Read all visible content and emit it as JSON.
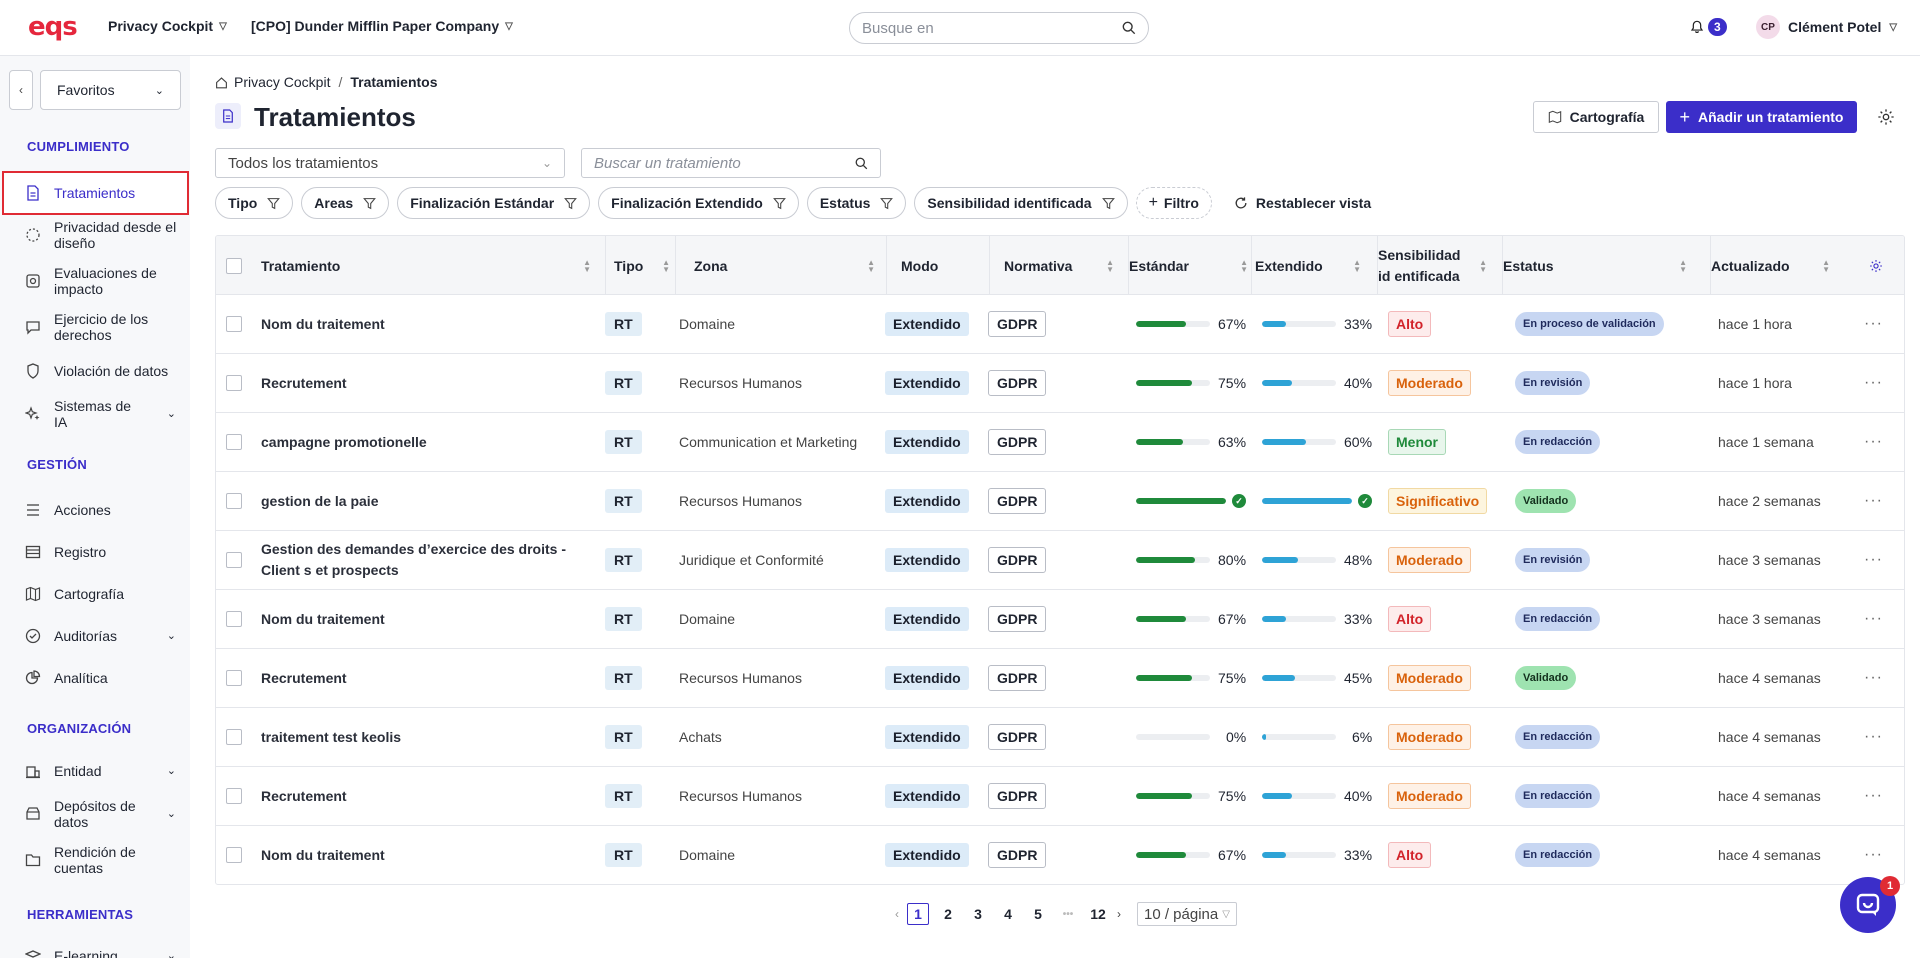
{
  "header": {
    "logo": "eqs",
    "module_menu": "Privacy Cockpit",
    "company_menu": "[CPO] Dunder Mifflin Paper Company",
    "search_placeholder": "Busque en",
    "notifications_count": "3",
    "user_initials": "CP",
    "user_name": "Clément Potel"
  },
  "sidebar": {
    "favorites_label": "Favoritos",
    "sections": {
      "cumplimiento": "CUMPLIMIENTO",
      "gestion": "GESTIÓN",
      "organizacion": "ORGANIZACIÓN",
      "herramientas": "HERRAMIENTAS"
    },
    "items": {
      "tratamientos": "Tratamientos",
      "privacidad": "Privacidad desde el diseño",
      "evaluaciones": "Evaluaciones de impacto",
      "ejercicio": "Ejercicio de los derechos",
      "violacion": "Violación de datos",
      "sistemas": "Sistemas de IA",
      "acciones": "Acciones",
      "registro": "Registro",
      "cartografia": "Cartografía",
      "auditorias": "Auditorías",
      "analitica": "Analítica",
      "entidad": "Entidad",
      "depositos": "Depósitos de datos",
      "rendicion": "Rendición de cuentas",
      "elearning": "E-learning"
    }
  },
  "main": {
    "breadcrumb_root": "Privacy Cockpit",
    "breadcrumb_current": "Tratamientos",
    "title": "Tratamientos",
    "cartografia_button": "Cartografía",
    "add_button": "Añadir un tratamiento",
    "all_select": "Todos los tratamientos",
    "search_placeholder": "Buscar un tratamiento",
    "filters": {
      "tipo": "Tipo",
      "areas": "Areas",
      "fin_estandar": "Finalización Estándar",
      "fin_extendido": "Finalización Extendido",
      "estatus": "Estatus",
      "sensibilidad": "Sensibilidad identificada",
      "filtro": "Filtro",
      "reset": "Restablecer vista"
    }
  },
  "table": {
    "columns": {
      "tratamiento": "Tratamiento",
      "tipo": "Tipo",
      "zona": "Zona",
      "modo": "Modo",
      "normativa": "Normativa",
      "estandar": "Estándar",
      "extendido": "Extendido",
      "sensibilidad": "Sensibilidad id entificada",
      "estatus": "Estatus",
      "actualizado": "Actualizado"
    },
    "rows": [
      {
        "name": "Nom du traitement",
        "tipo": "RT",
        "zona": "Domaine",
        "modo": "Extendido",
        "normativa": "GDPR",
        "std": 67,
        "std_label": "67%",
        "ext": 33,
        "ext_label": "33%",
        "sens": "Alto",
        "sens_class": "alto",
        "status": "En proceso de validación",
        "status_class": "proceso",
        "updated": "hace 1 hora"
      },
      {
        "name": "Recrutement",
        "tipo": "RT",
        "zona": "Recursos Humanos",
        "modo": "Extendido",
        "normativa": "GDPR",
        "std": 75,
        "std_label": "75%",
        "ext": 40,
        "ext_label": "40%",
        "sens": "Moderado",
        "sens_class": "moderado",
        "status": "En revisión",
        "status_class": "revision",
        "updated": "hace 1 hora"
      },
      {
        "name": "campagne promotionelle",
        "tipo": "RT",
        "zona": "Communication et Marketing",
        "modo": "Extendido",
        "normativa": "GDPR",
        "std": 63,
        "std_label": "63%",
        "ext": 60,
        "ext_label": "60%",
        "sens": "Menor",
        "sens_class": "menor",
        "status": "En redacción",
        "status_class": "redaccion",
        "updated": "hace 1 semana"
      },
      {
        "name": "gestion de la paie",
        "tipo": "RT",
        "zona": "Recursos Humanos",
        "modo": "Extendido",
        "normativa": "GDPR",
        "std": 100,
        "std_label": "",
        "ext": 100,
        "ext_label": "",
        "sens": "Significativo",
        "sens_class": "significativo",
        "status": "Validado",
        "status_class": "validado",
        "updated": "hace 2 semanas"
      },
      {
        "name": "Gestion des demandes d’exercice des droits - Client s et prospects",
        "tipo": "RT",
        "zona": "Juridique et Conformité",
        "modo": "Extendido",
        "normativa": "GDPR",
        "std": 80,
        "std_label": "80%",
        "ext": 48,
        "ext_label": "48%",
        "sens": "Moderado",
        "sens_class": "moderado",
        "status": "En revisión",
        "status_class": "revision",
        "updated": "hace 3 semanas"
      },
      {
        "name": "Nom du traitement",
        "tipo": "RT",
        "zona": "Domaine",
        "modo": "Extendido",
        "normativa": "GDPR",
        "std": 67,
        "std_label": "67%",
        "ext": 33,
        "ext_label": "33%",
        "sens": "Alto",
        "sens_class": "alto",
        "status": "En redacción",
        "status_class": "redaccion",
        "updated": "hace 3 semanas"
      },
      {
        "name": "Recrutement",
        "tipo": "RT",
        "zona": "Recursos Humanos",
        "modo": "Extendido",
        "normativa": "GDPR",
        "std": 75,
        "std_label": "75%",
        "ext": 45,
        "ext_label": "45%",
        "sens": "Moderado",
        "sens_class": "moderado",
        "status": "Validado",
        "status_class": "validado",
        "updated": "hace 4 semanas"
      },
      {
        "name": "traitement test keolis",
        "tipo": "RT",
        "zona": "Achats",
        "modo": "Extendido",
        "normativa": "GDPR",
        "std": 0,
        "std_label": "0%",
        "ext": 6,
        "ext_label": "6%",
        "sens": "Moderado",
        "sens_class": "moderado",
        "status": "En redacción",
        "status_class": "redaccion",
        "updated": "hace 4 semanas"
      },
      {
        "name": "Recrutement",
        "tipo": "RT",
        "zona": "Recursos Humanos",
        "modo": "Extendido",
        "normativa": "GDPR",
        "std": 75,
        "std_label": "75%",
        "ext": 40,
        "ext_label": "40%",
        "sens": "Moderado",
        "sens_class": "moderado",
        "status": "En redacción",
        "status_class": "redaccion",
        "updated": "hace 4 semanas"
      },
      {
        "name": "Nom du traitement",
        "tipo": "RT",
        "zona": "Domaine",
        "modo": "Extendido",
        "normativa": "GDPR",
        "std": 67,
        "std_label": "67%",
        "ext": 33,
        "ext_label": "33%",
        "sens": "Alto",
        "sens_class": "alto",
        "status": "En redacción",
        "status_class": "redaccion",
        "updated": "hace 4 semanas"
      }
    ]
  },
  "pagination": {
    "pages": [
      "1",
      "2",
      "3",
      "4",
      "5"
    ],
    "ellipsis": "•••",
    "last": "12",
    "page_size": "10 / página"
  },
  "help_badge": "1",
  "colors": {
    "accent": "#3b2ec9",
    "std_bar": "#1f8a3b",
    "ext_bar": "#2ea3d6"
  }
}
